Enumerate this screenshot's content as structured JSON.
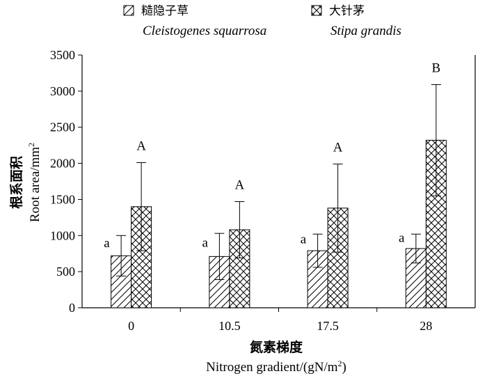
{
  "chart_data": {
    "type": "bar",
    "categories": [
      "0",
      "10.5",
      "17.5",
      "28"
    ],
    "series": [
      {
        "name_cn": "糙隐子草",
        "name": "Cleistogenes squarrosa",
        "pattern": "hatch-diagonal",
        "values": [
          720,
          710,
          790,
          820
        ],
        "error": [
          280,
          320,
          230,
          200
        ],
        "labels": [
          "a",
          "a",
          "a",
          "a"
        ]
      },
      {
        "name_cn": "大针茅",
        "name": "Stipa grandis",
        "pattern": "hatch-cross",
        "values": [
          1400,
          1080,
          1380,
          2320
        ],
        "error": [
          610,
          390,
          610,
          770
        ],
        "labels": [
          "A",
          "A",
          "A",
          "B"
        ]
      }
    ],
    "ylim": [
      0,
      3500
    ],
    "yticks": [
      "0",
      "500",
      "1000",
      "1500",
      "2000",
      "2500",
      "3000",
      "3500"
    ],
    "ylabel_cn": "根系面积",
    "ylabel": "Root area/mm",
    "ylabel_sup": "2",
    "xlabel_cn": "氮素梯度",
    "xlabel": "Nitrogen gradient/(gN/m",
    "xlabel_sup": "2",
    "xlabel_close": ")",
    "legend_position": "top",
    "grid": false
  }
}
